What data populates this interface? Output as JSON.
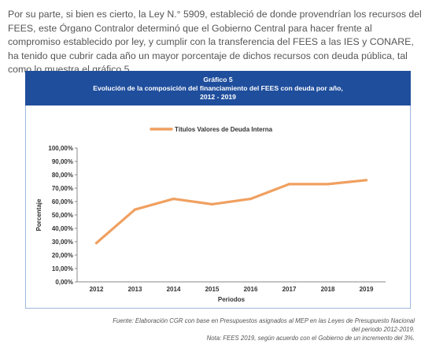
{
  "paragraph": "Por su parte, si bien es cierto, la Ley N.° 5909, estableció de donde provendrían los recursos del FEES, este Órgano Contralor determinó que el Gobierno Central para hacer frente al compromiso establecido por ley, y cumplir con la transferencia del FEES a las IES y CONARE, ha tenido que cubrir cada año un mayor porcentaje de dichos recursos con deuda pública, tal como lo muestra el gráfico 5.",
  "banner": {
    "line1": "Gráfico 5",
    "line2": "Evolución de la composición del financiamiento del FEES con deuda por año,",
    "line3": "2012 - 2019"
  },
  "chart_data": {
    "type": "line",
    "title": "Gráfico 5",
    "x": [
      "2012",
      "2013",
      "2014",
      "2015",
      "2016",
      "2017",
      "2018",
      "2019"
    ],
    "series": [
      {
        "name": "Títulos Valores de Deuda Interna",
        "values": [
          29,
          54,
          62,
          58,
          62,
          73,
          73,
          76
        ],
        "color": "#f0a060"
      }
    ],
    "xlabel": "Periodos",
    "ylabel": "Porcentaje",
    "ylim": [
      0,
      100
    ],
    "yticks": [
      "0,00%",
      "10,00%",
      "20,00%",
      "30,00%",
      "40,00%",
      "50,00%",
      "60,00%",
      "70,00%",
      "80,00%",
      "90,00%",
      "100,00%"
    ],
    "legend": "top",
    "grid": false
  },
  "source": {
    "line1": "Fuente: Elaboración CGR con base en Presupuestos asignados al MEP en las Leyes de Presupuesto Nacional",
    "line2": "del periodo 2012-2019.",
    "line3": "Nota: FEES 2019, según acuerdo con el Gobierno de un incremento del 3%."
  }
}
